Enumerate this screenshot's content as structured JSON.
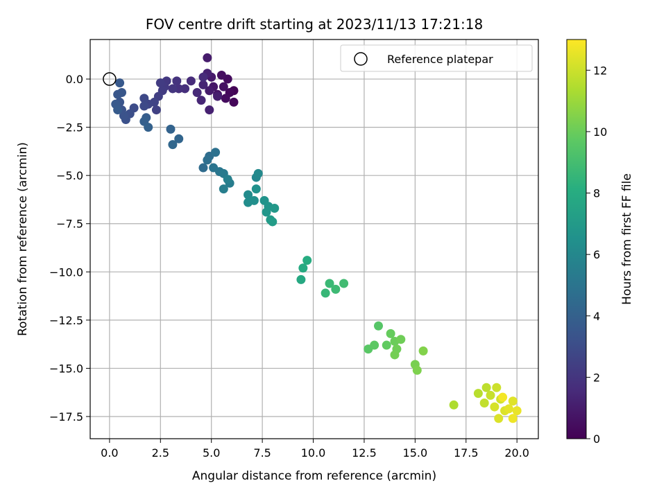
{
  "chart_data": {
    "type": "scatter",
    "title": "FOV centre drift starting at 2023/11/13 17:21:18",
    "xlabel": "Angular distance from reference (arcmin)",
    "ylabel": "Rotation from reference (arcmin)",
    "xlim": [
      -0.95,
      21.05
    ],
    "ylim": [
      -18.65,
      2.05
    ],
    "xticks": [
      0.0,
      2.5,
      5.0,
      7.5,
      10.0,
      12.5,
      15.0,
      17.5,
      20.0
    ],
    "xtick_labels": [
      "0.0",
      "2.5",
      "5.0",
      "7.5",
      "10.0",
      "12.5",
      "15.0",
      "17.5",
      "20.0"
    ],
    "yticks": [
      0.0,
      -2.5,
      -5.0,
      -7.5,
      -10.0,
      -12.5,
      -15.0,
      -17.5
    ],
    "ytick_labels": [
      "0.0",
      "−2.5",
      "−5.0",
      "−7.5",
      "−10.0",
      "−12.5",
      "−15.0",
      "−17.5"
    ],
    "grid": true,
    "colormap": "viridis",
    "colorbar": {
      "label": "Hours from first FF file",
      "range": [
        0,
        13
      ],
      "ticks": [
        0,
        2,
        4,
        6,
        8,
        10,
        12
      ],
      "tick_labels": [
        "0",
        "2",
        "4",
        "6",
        "8",
        "10",
        "12"
      ]
    },
    "legend": {
      "placement": "top-right",
      "entries": [
        {
          "label": "Reference platepar",
          "marker": "open-circle"
        }
      ]
    },
    "reference_point": {
      "x": 0.0,
      "y": 0.0
    },
    "series": [
      {
        "points": [
          {
            "x": 6.1,
            "y": -0.6,
            "c": 0.1
          },
          {
            "x": 6.1,
            "y": -1.2,
            "c": 0.2
          },
          {
            "x": 5.9,
            "y": -0.7,
            "c": 0.3
          },
          {
            "x": 5.7,
            "y": -1.0,
            "c": 0.4
          },
          {
            "x": 5.8,
            "y": 0.0,
            "c": 0.4
          },
          {
            "x": 5.5,
            "y": 0.2,
            "c": 0.5
          },
          {
            "x": 5.6,
            "y": -0.4,
            "c": 0.6
          },
          {
            "x": 5.3,
            "y": -0.8,
            "c": 0.7
          },
          {
            "x": 5.1,
            "y": -0.4,
            "c": 0.8
          },
          {
            "x": 5.0,
            "y": 0.1,
            "c": 0.9
          },
          {
            "x": 4.9,
            "y": -0.6,
            "c": 1.0
          },
          {
            "x": 4.8,
            "y": 1.1,
            "c": 1.0
          },
          {
            "x": 5.3,
            "y": -0.9,
            "c": 1.1
          },
          {
            "x": 4.8,
            "y": 0.3,
            "c": 1.2
          },
          {
            "x": 4.9,
            "y": -1.6,
            "c": 1.2
          },
          {
            "x": 4.6,
            "y": -0.3,
            "c": 1.3
          },
          {
            "x": 4.5,
            "y": -1.1,
            "c": 1.4
          },
          {
            "x": 4.3,
            "y": -0.7,
            "c": 1.5
          },
          {
            "x": 4.0,
            "y": -0.1,
            "c": 1.6
          },
          {
            "x": 4.6,
            "y": 0.1,
            "c": 1.6
          },
          {
            "x": 3.7,
            "y": -0.5,
            "c": 1.7
          },
          {
            "x": 3.4,
            "y": -0.5,
            "c": 1.8
          },
          {
            "x": 3.3,
            "y": -0.1,
            "c": 1.9
          },
          {
            "x": 3.1,
            "y": -0.5,
            "c": 2.0
          },
          {
            "x": 2.8,
            "y": -0.1,
            "c": 2.1
          },
          {
            "x": 2.7,
            "y": -0.4,
            "c": 2.2
          },
          {
            "x": 2.6,
            "y": -0.6,
            "c": 2.3
          },
          {
            "x": 2.5,
            "y": -0.2,
            "c": 2.3
          },
          {
            "x": 2.4,
            "y": -0.9,
            "c": 2.4
          },
          {
            "x": 2.3,
            "y": -1.6,
            "c": 2.5
          },
          {
            "x": 2.2,
            "y": -1.2,
            "c": 2.6
          },
          {
            "x": 1.9,
            "y": -1.3,
            "c": 2.7
          },
          {
            "x": 1.7,
            "y": -1.0,
            "c": 2.8
          },
          {
            "x": 1.7,
            "y": -1.4,
            "c": 2.9
          },
          {
            "x": 1.2,
            "y": -1.5,
            "c": 3.0
          },
          {
            "x": 1.0,
            "y": -1.8,
            "c": 3.1
          },
          {
            "x": 0.8,
            "y": -2.1,
            "c": 3.2
          },
          {
            "x": 0.7,
            "y": -1.9,
            "c": 3.3
          },
          {
            "x": 0.6,
            "y": -1.6,
            "c": 3.3
          },
          {
            "x": 0.5,
            "y": -1.2,
            "c": 3.4
          },
          {
            "x": 0.4,
            "y": -0.8,
            "c": 3.5
          },
          {
            "x": 0.6,
            "y": -0.7,
            "c": 3.5
          },
          {
            "x": 0.5,
            "y": -0.2,
            "c": 3.6
          },
          {
            "x": 0.3,
            "y": -1.3,
            "c": 3.6
          },
          {
            "x": 0.4,
            "y": -1.6,
            "c": 3.7
          },
          {
            "x": 1.8,
            "y": -2.0,
            "c": 3.8
          },
          {
            "x": 1.7,
            "y": -2.2,
            "c": 3.9
          },
          {
            "x": 1.9,
            "y": -2.5,
            "c": 4.0
          },
          {
            "x": 3.0,
            "y": -2.6,
            "c": 4.1
          },
          {
            "x": 3.4,
            "y": -3.1,
            "c": 4.2
          },
          {
            "x": 3.1,
            "y": -3.4,
            "c": 4.3
          },
          {
            "x": 4.6,
            "y": -4.6,
            "c": 4.5
          },
          {
            "x": 4.9,
            "y": -4.0,
            "c": 4.6
          },
          {
            "x": 4.8,
            "y": -4.2,
            "c": 4.7
          },
          {
            "x": 5.2,
            "y": -3.8,
            "c": 4.8
          },
          {
            "x": 5.1,
            "y": -4.6,
            "c": 5.0
          },
          {
            "x": 5.4,
            "y": -4.8,
            "c": 5.1
          },
          {
            "x": 5.6,
            "y": -4.9,
            "c": 5.3
          },
          {
            "x": 5.9,
            "y": -5.4,
            "c": 5.4
          },
          {
            "x": 5.6,
            "y": -5.7,
            "c": 5.5
          },
          {
            "x": 5.8,
            "y": -5.2,
            "c": 5.6
          },
          {
            "x": 7.2,
            "y": -5.1,
            "c": 6.0
          },
          {
            "x": 7.3,
            "y": -4.9,
            "c": 6.1
          },
          {
            "x": 6.8,
            "y": -6.0,
            "c": 6.2
          },
          {
            "x": 6.8,
            "y": -6.4,
            "c": 6.3
          },
          {
            "x": 7.1,
            "y": -6.3,
            "c": 6.4
          },
          {
            "x": 7.2,
            "y": -5.7,
            "c": 6.5
          },
          {
            "x": 7.6,
            "y": -6.3,
            "c": 6.6
          },
          {
            "x": 7.8,
            "y": -6.6,
            "c": 6.7
          },
          {
            "x": 7.7,
            "y": -6.9,
            "c": 6.8
          },
          {
            "x": 8.1,
            "y": -6.7,
            "c": 6.9
          },
          {
            "x": 7.9,
            "y": -7.3,
            "c": 7.0
          },
          {
            "x": 8.0,
            "y": -7.4,
            "c": 7.1
          },
          {
            "x": 9.4,
            "y": -10.4,
            "c": 7.8
          },
          {
            "x": 9.5,
            "y": -9.8,
            "c": 7.9
          },
          {
            "x": 9.7,
            "y": -9.4,
            "c": 8.0
          },
          {
            "x": 10.6,
            "y": -11.1,
            "c": 8.6
          },
          {
            "x": 10.8,
            "y": -10.6,
            "c": 8.7
          },
          {
            "x": 11.1,
            "y": -10.9,
            "c": 8.8
          },
          {
            "x": 11.5,
            "y": -10.6,
            "c": 8.9
          },
          {
            "x": 13.2,
            "y": -12.8,
            "c": 9.5
          },
          {
            "x": 12.7,
            "y": -14.0,
            "c": 9.6
          },
          {
            "x": 13.0,
            "y": -13.8,
            "c": 9.7
          },
          {
            "x": 13.6,
            "y": -13.8,
            "c": 9.8
          },
          {
            "x": 13.8,
            "y": -13.2,
            "c": 9.9
          },
          {
            "x": 14.0,
            "y": -13.6,
            "c": 10.0
          },
          {
            "x": 14.1,
            "y": -14.0,
            "c": 10.1
          },
          {
            "x": 14.3,
            "y": -13.5,
            "c": 10.1
          },
          {
            "x": 14.0,
            "y": -14.3,
            "c": 10.2
          },
          {
            "x": 15.0,
            "y": -14.8,
            "c": 10.3
          },
          {
            "x": 15.1,
            "y": -15.1,
            "c": 10.4
          },
          {
            "x": 15.4,
            "y": -14.1,
            "c": 10.5
          },
          {
            "x": 16.9,
            "y": -16.9,
            "c": 11.4
          },
          {
            "x": 18.1,
            "y": -16.3,
            "c": 11.6
          },
          {
            "x": 18.5,
            "y": -16.0,
            "c": 11.7
          },
          {
            "x": 18.4,
            "y": -16.8,
            "c": 11.8
          },
          {
            "x": 18.7,
            "y": -16.4,
            "c": 11.9
          },
          {
            "x": 19.0,
            "y": -16.0,
            "c": 12.0
          },
          {
            "x": 19.2,
            "y": -16.6,
            "c": 12.1
          },
          {
            "x": 18.9,
            "y": -17.0,
            "c": 12.2
          },
          {
            "x": 19.4,
            "y": -17.2,
            "c": 12.3
          },
          {
            "x": 19.1,
            "y": -17.6,
            "c": 12.3
          },
          {
            "x": 19.8,
            "y": -16.7,
            "c": 12.4
          },
          {
            "x": 19.6,
            "y": -17.1,
            "c": 12.5
          },
          {
            "x": 20.0,
            "y": -17.2,
            "c": 12.6
          },
          {
            "x": 19.8,
            "y": -17.6,
            "c": 12.7
          },
          {
            "x": 19.3,
            "y": -16.5,
            "c": 12.8
          }
        ]
      }
    ]
  }
}
